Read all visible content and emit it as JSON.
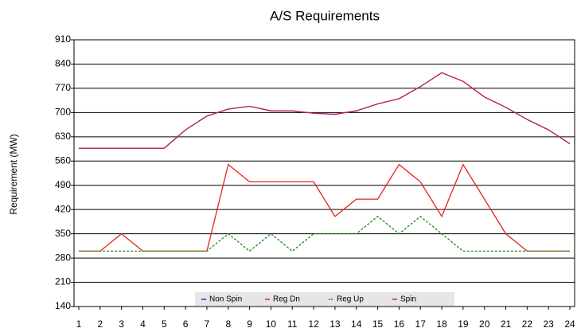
{
  "chart_data": {
    "type": "line",
    "title": "A/S Requirements",
    "y_label": "Requirement (MW)",
    "categories": [
      "1",
      "2",
      "3",
      "4",
      "5",
      "6",
      "7",
      "8",
      "9",
      "10",
      "11",
      "12",
      "13",
      "14",
      "15",
      "16",
      "17",
      "18",
      "19",
      "20",
      "21",
      "22",
      "23",
      "24"
    ],
    "series": [
      {
        "name": "Non Spin",
        "color": "#2a2ad8",
        "values": [
          597,
          597,
          597,
          597,
          597,
          650,
          690,
          710,
          718,
          705,
          705,
          698,
          695,
          705,
          725,
          740,
          775,
          815,
          790,
          745,
          715,
          680,
          650,
          610
        ]
      },
      {
        "name": "Reg Dn",
        "color": "#e82020",
        "values": [
          300,
          300,
          350,
          300,
          300,
          300,
          300,
          550,
          500,
          500,
          500,
          500,
          400,
          450,
          450,
          550,
          500,
          400,
          550,
          450,
          350,
          300,
          300,
          300
        ]
      },
      {
        "name": "Reg Up",
        "color": "#1a8a1a",
        "dashed": true,
        "values": [
          300,
          300,
          300,
          300,
          300,
          300,
          300,
          350,
          300,
          350,
          300,
          350,
          350,
          350,
          400,
          350,
          400,
          350,
          300,
          300,
          300,
          300,
          300,
          300
        ]
      },
      {
        "name": "Spin",
        "color": "#c02060",
        "values": [
          597,
          597,
          597,
          597,
          597,
          650,
          690,
          710,
          718,
          705,
          705,
          698,
          695,
          705,
          725,
          740,
          775,
          815,
          790,
          745,
          715,
          680,
          650,
          610
        ]
      }
    ],
    "ylim": [
      140,
      910
    ],
    "yticks": [
      140,
      210,
      280,
      350,
      420,
      490,
      560,
      630,
      700,
      770,
      840,
      910
    ],
    "grid": true,
    "legend": "bottom"
  }
}
